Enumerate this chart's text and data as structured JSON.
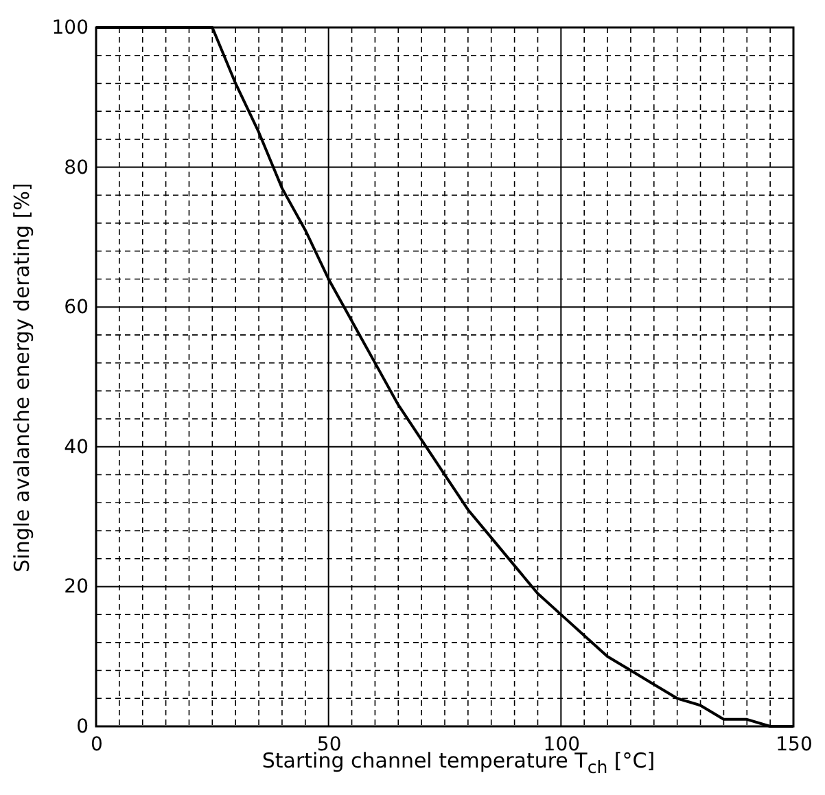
{
  "chart_data": {
    "type": "line",
    "xlabel": "Starting channel temperature T$_{ch}$ [°C]",
    "ylabel": "Single avalanche energy derating   [%]",
    "x": [
      0,
      25,
      30,
      35,
      40,
      45,
      50,
      55,
      60,
      65,
      70,
      75,
      80,
      85,
      90,
      95,
      100,
      105,
      110,
      115,
      120,
      125,
      130,
      135,
      140,
      145,
      150
    ],
    "series": [
      {
        "color": "#000000",
        "values": [
          100,
          100,
          92,
          85,
          77,
          71,
          64,
          58,
          52,
          46,
          41,
          36,
          31,
          27,
          23,
          19,
          16,
          13,
          10,
          8,
          6,
          4,
          3,
          1,
          1,
          0,
          0
        ]
      }
    ],
    "xlim": [
      0,
      150
    ],
    "ylim": [
      0,
      100
    ],
    "xticks": [
      0,
      {
        "value": 5,
        "label": null
      },
      {
        "value": 10,
        "label": null
      },
      {
        "value": 15,
        "label": null
      },
      {
        "value": 20,
        "label": null
      },
      {
        "value": 25,
        "label": null
      },
      {
        "value": 30,
        "label": null
      },
      {
        "value": 35,
        "label": null
      },
      {
        "value": 40,
        "label": null
      },
      {
        "value": 45,
        "label": null
      },
      50,
      {
        "value": 55,
        "label": null
      },
      {
        "value": 60,
        "label": null
      },
      {
        "value": 65,
        "label": null
      },
      {
        "value": 70,
        "label": null
      },
      {
        "value": 75,
        "label": null
      },
      {
        "value": 80,
        "label": null
      },
      {
        "value": 85,
        "label": null
      },
      {
        "value": 90,
        "label": null
      },
      {
        "value": 95,
        "label": null
      },
      100,
      {
        "value": 105,
        "label": null
      },
      {
        "value": 110,
        "label": null
      },
      {
        "value": 115,
        "label": null
      },
      {
        "value": 120,
        "label": null
      },
      {
        "value": 125,
        "label": null
      },
      {
        "value": 130,
        "label": null
      },
      {
        "value": 135,
        "label": null
      },
      {
        "value": 140,
        "label": null
      },
      {
        "value": 145,
        "label": null
      },
      150
    ],
    "yticks": [
      0,
      {
        "value": 4,
        "label": null
      },
      {
        "value": 8,
        "label": null
      },
      {
        "value": 12,
        "label": null
      },
      {
        "value": 16,
        "label": null
      },
      20,
      {
        "value": 24,
        "label": null
      },
      {
        "value": 28,
        "label": null
      },
      {
        "value": 32,
        "label": null
      },
      {
        "value": 36,
        "label": null
      },
      40,
      {
        "value": 44,
        "label": null
      },
      {
        "value": 48,
        "label": null
      },
      {
        "value": 52,
        "label": null
      },
      {
        "value": 56,
        "label": null
      },
      60,
      {
        "value": 64,
        "label": null
      },
      {
        "value": 68,
        "label": null
      },
      {
        "value": 72,
        "label": null
      },
      {
        "value": 76,
        "label": null
      },
      80,
      {
        "value": 84,
        "label": null
      },
      {
        "value": 88,
        "label": null
      },
      {
        "value": 92,
        "label": null
      },
      {
        "value": 96,
        "label": null
      },
      100
    ],
    "grid": true,
    "line_style": "solid",
    "marker": "none",
    "legend": false
  }
}
